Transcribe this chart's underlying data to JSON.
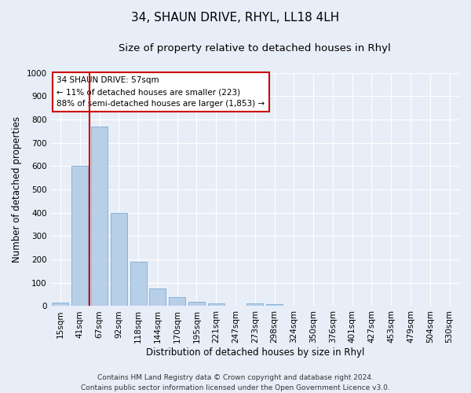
{
  "title1": "34, SHAUN DRIVE, RHYL, LL18 4LH",
  "title2": "Size of property relative to detached houses in Rhyl",
  "xlabel": "Distribution of detached houses by size in Rhyl",
  "ylabel": "Number of detached properties",
  "categories": [
    "15sqm",
    "41sqm",
    "67sqm",
    "92sqm",
    "118sqm",
    "144sqm",
    "170sqm",
    "195sqm",
    "221sqm",
    "247sqm",
    "273sqm",
    "298sqm",
    "324sqm",
    "350sqm",
    "376sqm",
    "401sqm",
    "427sqm",
    "453sqm",
    "479sqm",
    "504sqm",
    "530sqm"
  ],
  "values": [
    15,
    600,
    770,
    400,
    190,
    75,
    37,
    20,
    13,
    0,
    12,
    7,
    0,
    0,
    0,
    0,
    0,
    0,
    0,
    0,
    0
  ],
  "bar_color": "#b8cfe8",
  "bar_edgecolor": "#7aadd4",
  "background_color": "#e8eef8",
  "grid_color": "#ffffff",
  "vline_color": "#cc0000",
  "vline_pos": 1.5,
  "annotation_text": "34 SHAUN DRIVE: 57sqm\n← 11% of detached houses are smaller (223)\n88% of semi-detached houses are larger (1,853) →",
  "annotation_box_facecolor": "#ffffff",
  "annotation_box_edgecolor": "#cc0000",
  "ylim": [
    0,
    1000
  ],
  "yticks": [
    0,
    100,
    200,
    300,
    400,
    500,
    600,
    700,
    800,
    900,
    1000
  ],
  "footer": "Contains HM Land Registry data © Crown copyright and database right 2024.\nContains public sector information licensed under the Open Government Licence v3.0.",
  "title1_fontsize": 11,
  "title2_fontsize": 9.5,
  "ylabel_fontsize": 8.5,
  "xlabel_fontsize": 8.5,
  "tick_fontsize": 7.5,
  "annot_fontsize": 7.5,
  "footer_fontsize": 6.5
}
